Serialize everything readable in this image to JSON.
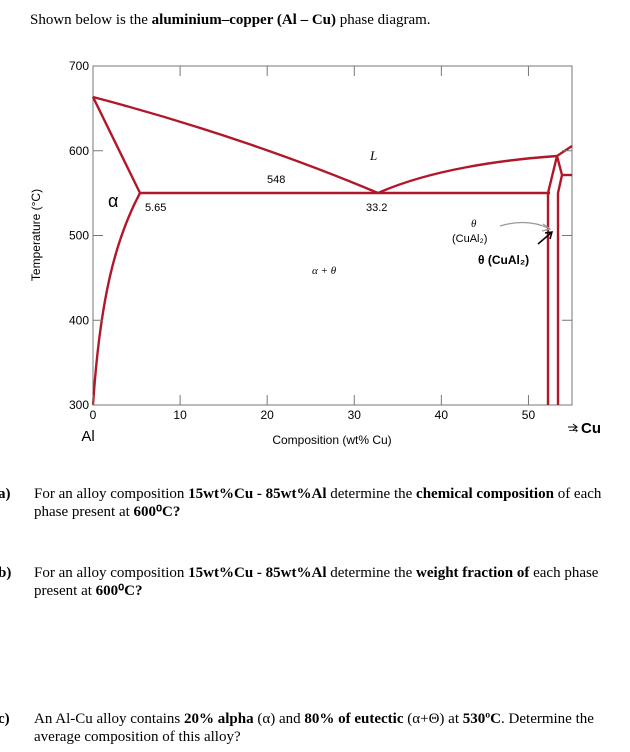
{
  "intro": [
    "Shown below is the ",
    "aluminium–copper (Al – Cu)",
    " phase diagram."
  ],
  "diagram": {
    "xlim": [
      0,
      55
    ],
    "xticks": [
      0,
      10,
      20,
      30,
      40,
      50
    ],
    "ylim": [
      300,
      700
    ],
    "yticks": [
      300,
      400,
      500,
      600,
      700
    ],
    "x_label": "Composition (wt% Cu)",
    "y_label": "Temperature (°C)",
    "left_end": "Al",
    "right_end": "→Cu",
    "annotations": {
      "alpha": "α",
      "alpha_limit": "5.65",
      "eutectic_temp": "548",
      "liquid": "L",
      "eutectic_comp": "33.2",
      "two_phase": "α + θ",
      "theta_italic": "θ",
      "theta_formula": "(CuAl₂)",
      "theta_label": "θ (CuAl₂)"
    }
  },
  "questions": [
    {
      "label": "a)",
      "segments": [
        "For an alloy composition ",
        "15wt%Cu - 85wt%Al",
        " determine the ",
        "chemical composition",
        " of each phase present at ",
        "600⁰C?"
      ]
    },
    {
      "label": "b)",
      "segments": [
        "For an alloy composition ",
        "15wt%Cu - 85wt%Al",
        " determine the ",
        "weight fraction of",
        " each phase present at ",
        "600⁰C?"
      ]
    },
    {
      "label": "c)",
      "segments": [
        "An Al-Cu alloy contains ",
        "20% alpha",
        " (α) and ",
        "80% of eutectic",
        " (α+Θ) at ",
        "530ºC",
        ". Determine the average composition of this alloy?"
      ]
    }
  ]
}
